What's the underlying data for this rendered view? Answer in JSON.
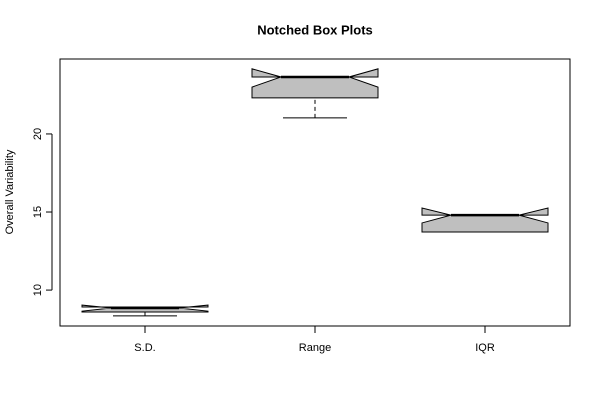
{
  "chart_data": {
    "type": "boxplot",
    "title": "Notched Box Plots",
    "y_label": "Overall Variability",
    "categories": [
      "S.D.",
      "Range",
      "IQR"
    ],
    "boxes": [
      {
        "min": 8.35,
        "q1": 8.6,
        "median": 8.85,
        "q3": 8.92,
        "max": 8.92,
        "notch_low": 8.65,
        "notch_high": 9.04
      },
      {
        "min": 21.03,
        "q1": 22.31,
        "median": 23.65,
        "q3": 23.65,
        "max": 23.65,
        "notch_low": 23.0,
        "notch_high": 24.17
      },
      {
        "min": 13.72,
        "q1": 13.72,
        "median": 14.8,
        "q3": 14.8,
        "max": 14.8,
        "notch_low": 14.3,
        "notch_high": 15.26
      }
    ],
    "color": "#bfbfbf",
    "ylim": [
      7.7,
      24.8
    ],
    "yticks": [
      10,
      15,
      20
    ]
  }
}
